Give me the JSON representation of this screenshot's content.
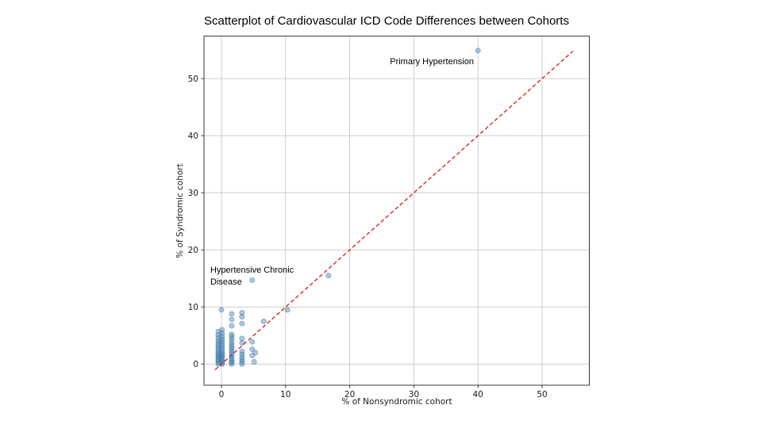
{
  "chart_data": {
    "type": "scatter",
    "title": "Scatterplot of Cardiovascular ICD Code Differences between Cohorts",
    "xlabel": "% of Nonsyndromic cohort",
    "ylabel": "% of Syndromic cohort",
    "x_ticks": [
      0,
      10,
      20,
      30,
      40,
      50
    ],
    "y_ticks": [
      0,
      10,
      20,
      30,
      40,
      50
    ],
    "xlim": [
      -2.9,
      57.3
    ],
    "ylim": [
      -3.7,
      57.4
    ],
    "grid": true,
    "legend": "none",
    "colors": {
      "point_fill": "#4682b4",
      "point_fill_opacity": 0.45,
      "point_stroke": "#35709f",
      "point_stroke_opacity": 0.5,
      "identity_line": "#d62728",
      "grid": "#cdcdcd",
      "axis": "#3a3a3a"
    },
    "identity_line": {
      "x1": -1,
      "y1": -1,
      "x2": 54.8,
      "y2": 54.8,
      "style": "dashed"
    },
    "annotations": [
      {
        "id": "primary-hypertension",
        "lines": [
          "Primary Hypertension"
        ],
        "point_x": 40,
        "point_y": 54.9
      },
      {
        "id": "hypertensive-chronic-disease",
        "lines": [
          "Hypertensive Chronic",
          "Disease"
        ],
        "point_x": 4.8,
        "point_y": 14.7
      }
    ],
    "points": [
      [
        40,
        54.9
      ],
      [
        16.7,
        15.5
      ],
      [
        10.3,
        9.5
      ],
      [
        6.6,
        7.5
      ],
      [
        4.8,
        14.7
      ],
      [
        0,
        9.5
      ],
      [
        -0.5,
        0
      ],
      [
        -0.5,
        0.3
      ],
      [
        -0.5,
        0.6
      ],
      [
        -0.5,
        0.9
      ],
      [
        -0.5,
        1.2
      ],
      [
        -0.5,
        1.5
      ],
      [
        -0.5,
        1.8
      ],
      [
        -0.5,
        2.1
      ],
      [
        -0.5,
        2.5
      ],
      [
        -0.5,
        2.9
      ],
      [
        -0.5,
        3.3
      ],
      [
        -0.5,
        3.7
      ],
      [
        -0.5,
        4.1
      ],
      [
        -0.5,
        4.6
      ],
      [
        -0.5,
        5.1
      ],
      [
        -0.5,
        5.7
      ],
      [
        0.1,
        0
      ],
      [
        0.1,
        0.2
      ],
      [
        0.1,
        0.5
      ],
      [
        0.1,
        0.8
      ],
      [
        0.1,
        1.1
      ],
      [
        0.1,
        1.4
      ],
      [
        0.1,
        1.7
      ],
      [
        0.1,
        2.0
      ],
      [
        0.1,
        2.4
      ],
      [
        0.1,
        2.8
      ],
      [
        0.1,
        3.2
      ],
      [
        0.1,
        3.6
      ],
      [
        0.1,
        4.0
      ],
      [
        0.1,
        4.4
      ],
      [
        0.1,
        4.9
      ],
      [
        0.1,
        5.4
      ],
      [
        0.1,
        6.0
      ],
      [
        1.6,
        0
      ],
      [
        1.6,
        0.3
      ],
      [
        1.6,
        0.6
      ],
      [
        1.6,
        0.9
      ],
      [
        1.6,
        1.3
      ],
      [
        1.6,
        1.7
      ],
      [
        1.6,
        2.1
      ],
      [
        1.6,
        2.5
      ],
      [
        1.6,
        2.9
      ],
      [
        1.6,
        3.3
      ],
      [
        1.6,
        3.8
      ],
      [
        1.6,
        4.3
      ],
      [
        1.6,
        4.8
      ],
      [
        1.6,
        5.2
      ],
      [
        1.6,
        6.7
      ],
      [
        1.6,
        7.8
      ],
      [
        1.6,
        8.8
      ],
      [
        3.2,
        0
      ],
      [
        3.2,
        0.4
      ],
      [
        3.2,
        0.8
      ],
      [
        3.2,
        1.2
      ],
      [
        3.2,
        1.7
      ],
      [
        3.2,
        2.2
      ],
      [
        3.2,
        3.7
      ],
      [
        3.2,
        4.5
      ],
      [
        3.2,
        7.1
      ],
      [
        3.2,
        8.3
      ],
      [
        3.2,
        9.0
      ],
      [
        4.8,
        1.5
      ],
      [
        4.8,
        2.6
      ],
      [
        4.8,
        3.9
      ],
      [
        5.3,
        2.0
      ],
      [
        5.1,
        0.4
      ]
    ]
  }
}
